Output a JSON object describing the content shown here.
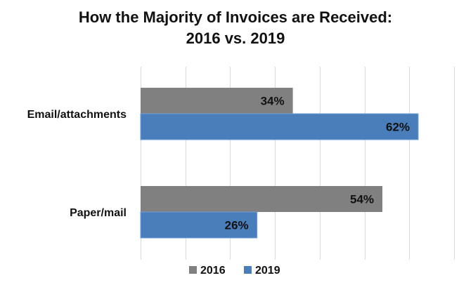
{
  "chart_data": {
    "type": "bar",
    "orientation": "horizontal",
    "title_lines": [
      "How the Majority of Invoices are Received:",
      "2016 vs. 2019"
    ],
    "categories": [
      "Email/attachments",
      "Paper/mail"
    ],
    "series": [
      {
        "name": "2016",
        "color": "#808080",
        "values": [
          34,
          54
        ],
        "labels": [
          "34%",
          "54%"
        ]
      },
      {
        "name": "2019",
        "color": "#4a7ebb",
        "values": [
          62,
          26
        ],
        "labels": [
          "62%",
          "26%"
        ]
      }
    ],
    "xlim": [
      0,
      70
    ],
    "grid": true,
    "legend_position": "bottom"
  }
}
